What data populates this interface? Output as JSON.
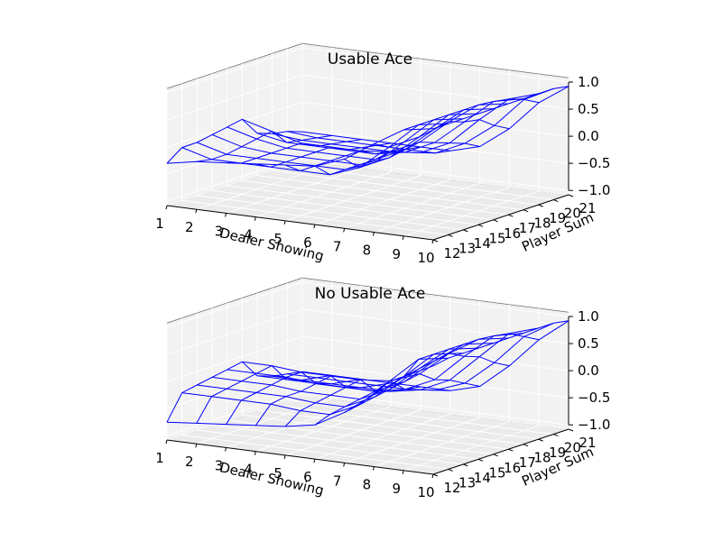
{
  "chart_data": [
    {
      "type": "surface",
      "title": "Usable Ace",
      "xlabel": "Dealer Showing",
      "ylabel": "Player Sum",
      "zlabel": "",
      "x": [
        1,
        2,
        3,
        4,
        5,
        6,
        7,
        8,
        9,
        10
      ],
      "y": [
        12,
        13,
        14,
        15,
        16,
        17,
        18,
        19,
        20,
        21
      ],
      "x_ticks": [
        "1",
        "2",
        "3",
        "4",
        "5",
        "6",
        "7",
        "8",
        "9",
        "10"
      ],
      "y_ticks": [
        "12",
        "13",
        "14",
        "15",
        "16",
        "17",
        "18",
        "19",
        "20",
        "21"
      ],
      "z_ticks": [
        "−1.0",
        "−0.5",
        "0.0",
        "0.5",
        "1.0"
      ],
      "zlim": [
        -1,
        1
      ],
      "color": "#0000ff",
      "grid": true,
      "z": [
        [
          -0.3,
          -0.2,
          -0.15,
          -0.1,
          -0.05,
          0.0,
          0.2,
          0.55,
          0.88,
          0.97
        ],
        [
          -0.1,
          -0.25,
          -0.25,
          -0.25,
          -0.25,
          -0.25,
          -0.05,
          0.4,
          0.88,
          0.97
        ],
        [
          -0.1,
          -0.25,
          -0.25,
          -0.25,
          -0.25,
          -0.25,
          -0.05,
          0.4,
          0.88,
          0.97
        ],
        [
          -0.05,
          -0.2,
          -0.25,
          -0.25,
          -0.25,
          -0.25,
          -0.05,
          0.4,
          0.88,
          0.97
        ],
        [
          0.0,
          -0.15,
          -0.25,
          -0.25,
          -0.25,
          -0.25,
          0.0,
          0.45,
          0.88,
          0.97
        ],
        [
          0.05,
          -0.1,
          -0.25,
          -0.25,
          -0.25,
          -0.2,
          0.05,
          0.5,
          0.88,
          0.97
        ],
        [
          -0.3,
          -0.4,
          -0.4,
          -0.4,
          -0.4,
          -0.3,
          -0.05,
          0.4,
          0.85,
          0.97
        ],
        [
          -0.4,
          -0.45,
          -0.45,
          -0.45,
          -0.45,
          -0.4,
          -0.15,
          0.35,
          0.8,
          0.97
        ],
        [
          -0.45,
          -0.5,
          -0.5,
          -0.5,
          -0.5,
          -0.5,
          -0.25,
          0.15,
          0.7,
          0.97
        ],
        [
          -0.55,
          -0.55,
          -0.55,
          -0.55,
          -0.55,
          -0.55,
          -0.4,
          0.0,
          0.55,
          0.92
        ]
      ]
    },
    {
      "type": "surface",
      "title": "No Usable Ace",
      "xlabel": "Dealer Showing",
      "ylabel": "Player Sum",
      "zlabel": "",
      "x": [
        1,
        2,
        3,
        4,
        5,
        6,
        7,
        8,
        9,
        10
      ],
      "y": [
        12,
        13,
        14,
        15,
        16,
        17,
        18,
        19,
        20,
        21
      ],
      "x_ticks": [
        "1",
        "2",
        "3",
        "4",
        "5",
        "6",
        "7",
        "8",
        "9",
        "10"
      ],
      "y_ticks": [
        "12",
        "13",
        "14",
        "15",
        "16",
        "17",
        "18",
        "19",
        "20",
        "21"
      ],
      "z_ticks": [
        "−1.0",
        "−0.5",
        "0.0",
        "0.5",
        "1.0"
      ],
      "zlim": [
        -1,
        1
      ],
      "color": "#0000ff",
      "grid": true,
      "z": [
        [
          -0.75,
          -0.7,
          -0.65,
          -0.6,
          -0.55,
          -0.45,
          -0.15,
          0.25,
          0.65,
          0.92
        ],
        [
          -0.3,
          -0.3,
          -0.3,
          -0.3,
          -0.35,
          -0.35,
          -0.1,
          0.4,
          0.88,
          0.97
        ],
        [
          -0.25,
          -0.25,
          -0.25,
          -0.25,
          -0.3,
          -0.3,
          -0.05,
          0.4,
          0.88,
          0.97
        ],
        [
          -0.2,
          -0.2,
          -0.2,
          -0.25,
          -0.25,
          -0.25,
          0.0,
          0.45,
          0.88,
          0.97
        ],
        [
          -0.15,
          -0.15,
          -0.15,
          -0.2,
          -0.2,
          -0.2,
          0.05,
          0.5,
          0.88,
          0.97
        ],
        [
          -0.1,
          -0.1,
          -0.15,
          -0.15,
          -0.15,
          -0.1,
          0.1,
          0.55,
          0.88,
          0.97
        ],
        [
          -0.45,
          -0.45,
          -0.45,
          -0.45,
          -0.45,
          -0.35,
          -0.1,
          0.4,
          0.85,
          0.97
        ],
        [
          -0.55,
          -0.55,
          -0.55,
          -0.55,
          -0.55,
          -0.45,
          -0.2,
          0.3,
          0.8,
          0.97
        ],
        [
          -0.6,
          -0.6,
          -0.6,
          -0.6,
          -0.6,
          -0.55,
          -0.35,
          0.1,
          0.65,
          0.97
        ],
        [
          -0.65,
          -0.65,
          -0.65,
          -0.65,
          -0.65,
          -0.65,
          -0.5,
          -0.05,
          0.5,
          0.92
        ]
      ]
    }
  ]
}
